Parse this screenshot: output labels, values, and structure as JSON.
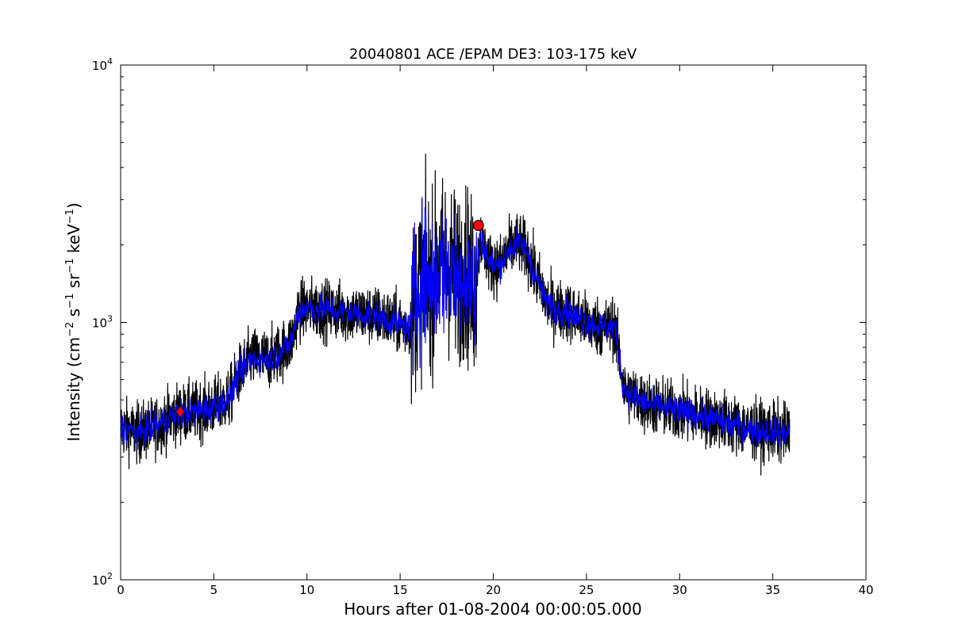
{
  "chart_data": {
    "type": "line",
    "title": "20040801 ACE /EPAM DE3: 103-175 keV",
    "xlabel": "Hours after 01-08-2004 00:00:05.000",
    "ylabel_parts": {
      "lead": "Intensity (cm",
      "sup1": "−2",
      "s": " s",
      "sup2": "−1",
      "sr": " sr",
      "sup3": "−1",
      "kev": " keV",
      "sup4": "−1",
      "tail": ")"
    },
    "x_range": [
      0,
      40
    ],
    "y_range": [
      100,
      10000
    ],
    "y_scale": "log",
    "x_ticks": [
      0,
      5,
      10,
      15,
      20,
      25,
      30,
      35,
      40
    ],
    "x_tick_labels": [
      "0",
      "5",
      "10",
      "15",
      "20",
      "25",
      "30",
      "35",
      "40"
    ],
    "y_ticks": [
      {
        "value": 100,
        "base": "10",
        "exp": "2"
      },
      {
        "value": 1000,
        "base": "10",
        "exp": "3"
      },
      {
        "value": 10000,
        "base": "10",
        "exp": "4"
      }
    ],
    "grid": false,
    "series": [
      {
        "style": "raw",
        "color": "#000000",
        "x_end": 35.9,
        "x": [
          0,
          1,
          2,
          3,
          4,
          5,
          5.8,
          6.3,
          7,
          8,
          9,
          9.3,
          9.5,
          10,
          12,
          14,
          15,
          15.5,
          15.8,
          16,
          16.3,
          16.6,
          17,
          17.5,
          18,
          18.5,
          19,
          19.3,
          19.8,
          20.3,
          20.8,
          21.3,
          21.8,
          22.3,
          23,
          24,
          25,
          26,
          26.5,
          26.8,
          27,
          28,
          30,
          32,
          34,
          35.9
        ],
        "y": [
          390,
          370,
          400,
          440,
          450,
          470,
          500,
          620,
          730,
          720,
          810,
          900,
          1100,
          1140,
          1100,
          1050,
          980,
          950,
          1200,
          1500,
          1500,
          1400,
          1600,
          1700,
          1500,
          1600,
          1300,
          2150,
          1700,
          1650,
          1900,
          2050,
          1900,
          1500,
          1150,
          1100,
          1000,
          950,
          970,
          700,
          550,
          490,
          450,
          420,
          380,
          370
        ]
      },
      {
        "style": "smoothed",
        "color": "#0000ff",
        "x": [
          0,
          1,
          2,
          3,
          4,
          5,
          5.8,
          6.3,
          7,
          8,
          9,
          9.3,
          9.5,
          10,
          12,
          14,
          15,
          15.5,
          15.8,
          16,
          16.3,
          16.6,
          17,
          17.5,
          18,
          18.5,
          19,
          19.3,
          19.8,
          20.3,
          20.8,
          21.3,
          21.8,
          22.3,
          23,
          24,
          25,
          26,
          26.5,
          26.8,
          27,
          28,
          30,
          32,
          34,
          35.9
        ],
        "y": [
          390,
          370,
          400,
          440,
          450,
          470,
          500,
          620,
          730,
          720,
          810,
          900,
          1100,
          1140,
          1100,
          1050,
          980,
          950,
          1200,
          1500,
          1500,
          1400,
          1600,
          1700,
          1500,
          1600,
          1300,
          2150,
          1700,
          1650,
          1900,
          2050,
          1900,
          1500,
          1150,
          1100,
          1000,
          950,
          970,
          700,
          550,
          490,
          450,
          420,
          380,
          370
        ]
      }
    ],
    "markers": [
      {
        "shape": "diamond",
        "x": 3.2,
        "y": 450,
        "color": "#ff0000"
      },
      {
        "shape": "circle",
        "x": 19.2,
        "y": 2380,
        "color": "#ff0000"
      }
    ]
  }
}
